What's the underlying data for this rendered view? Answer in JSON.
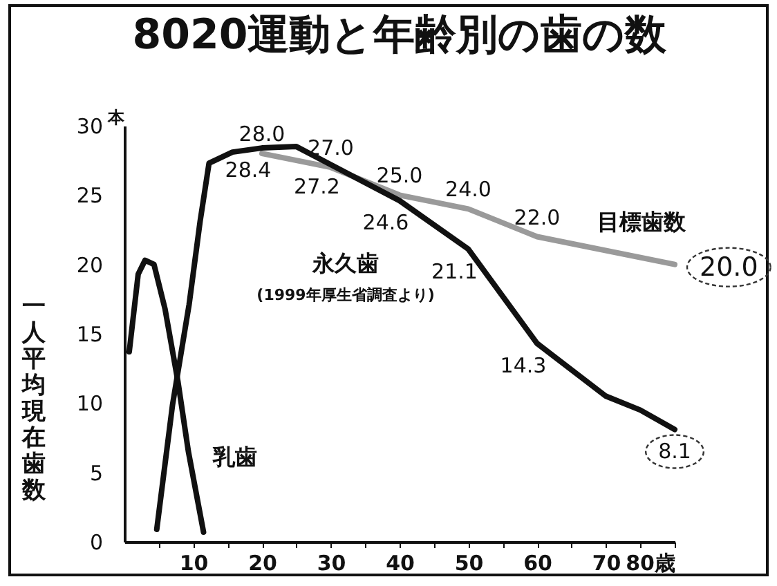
{
  "chart_data": {
    "type": "line",
    "title": "8020運動と年齢別の歯の数",
    "ylabel": "一人平均現在歯数",
    "annotations": [
      "(1999年厚生省調査より)",
      "本"
    ],
    "xlim": [
      0,
      80
    ],
    "xticks": [
      {
        "value": 5,
        "label": null
      },
      10,
      {
        "value": 15,
        "label": null
      },
      20,
      {
        "value": 25,
        "label": null
      },
      30,
      {
        "value": 35,
        "label": null
      },
      40,
      {
        "value": 45,
        "label": null
      },
      50,
      {
        "value": 55,
        "label": null
      },
      60,
      {
        "value": 65,
        "label": null
      },
      70,
      {
        "value": 75,
        "label": null
      },
      {
        "value": 80,
        "label": "80歳"
      }
    ],
    "ylim": [
      0,
      30
    ],
    "yticks": [
      0,
      5,
      10,
      15,
      20,
      25,
      30
    ],
    "grid": false,
    "series": [
      {
        "name": "目標歯数",
        "color": "#9a9a9a",
        "x": [
          20,
          30,
          40,
          50,
          60,
          80
        ],
        "values": [
          28.0,
          27.0,
          25.0,
          24.0,
          22.0,
          20.0
        ],
        "value_labels": [
          "28.0",
          "27.0",
          "25.0",
          "24.0",
          "22.0",
          "20.0"
        ]
      },
      {
        "name": "乳歯",
        "color": "#111111",
        "x": [
          0.7,
          2,
          3,
          4.3,
          5.9,
          7.8,
          9.3,
          11.5
        ],
        "values": [
          13.7,
          19.3,
          20.3,
          20.0,
          16.8,
          11.5,
          6.5,
          0.7
        ]
      },
      {
        "name": "永久歯",
        "color": "#111111",
        "x": [
          4.7,
          7,
          9.4,
          11,
          12.3,
          15.7,
          20,
          25,
          30,
          40,
          50,
          60,
          70,
          75,
          80
        ],
        "values": [
          0.9,
          9.9,
          17.1,
          23.1,
          27.3,
          28.1,
          28.4,
          28.5,
          27.2,
          24.6,
          21.1,
          14.3,
          10.5,
          9.5,
          8.1
        ],
        "value_labels": [
          null,
          null,
          null,
          null,
          null,
          null,
          "28.4",
          null,
          "27.2",
          "24.6",
          "21.1",
          "14.3",
          null,
          null,
          "8.1"
        ]
      }
    ]
  }
}
